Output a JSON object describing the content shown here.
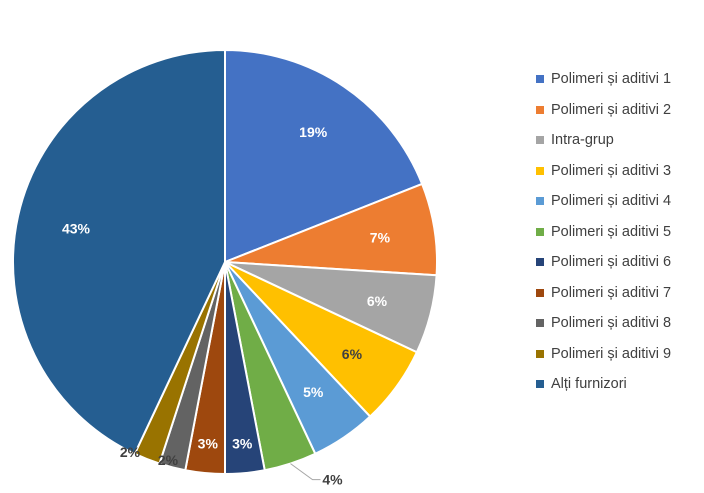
{
  "chart_data": {
    "type": "pie",
    "title": "",
    "legend_position": "right",
    "start_angle_deg": 0,
    "direction": "clockwise",
    "slices": [
      {
        "name": "Polimeri și aditivi 1",
        "value": 19,
        "label": "19%",
        "color": "#4472C4",
        "label_placement": "inside",
        "label_color": "#FFFFFF"
      },
      {
        "name": "Polimeri și aditivi 2",
        "value": 7,
        "label": "7%",
        "color": "#ED7D31",
        "label_placement": "inside",
        "label_color": "#FFFFFF"
      },
      {
        "name": "Intra-grup",
        "value": 6,
        "label": "6%",
        "color": "#A5A5A5",
        "label_placement": "inside",
        "label_color": "#FFFFFF"
      },
      {
        "name": "Polimeri și aditivi 3",
        "value": 6,
        "label": "6%",
        "color": "#FFC000",
        "label_placement": "inside",
        "label_color": "#404040"
      },
      {
        "name": "Polimeri și aditivi 4",
        "value": 5,
        "label": "5%",
        "color": "#5B9BD5",
        "label_placement": "inside",
        "label_color": "#FFFFFF"
      },
      {
        "name": "Polimeri și aditivi 5",
        "value": 4,
        "label": "4%",
        "color": "#70AD47",
        "label_placement": "outside-leader",
        "label_color": "#404040"
      },
      {
        "name": "Polimeri și aditivi 6",
        "value": 3,
        "label": "3%",
        "color": "#264478",
        "label_placement": "inside",
        "label_color": "#FFFFFF"
      },
      {
        "name": "Polimeri și aditivi 7",
        "value": 3,
        "label": "3%",
        "color": "#9E480E",
        "label_placement": "inside",
        "label_color": "#FFFFFF"
      },
      {
        "name": "Polimeri și aditivi 8",
        "value": 2,
        "label": "2%",
        "color": "#636363",
        "label_placement": "outside",
        "label_color": "#404040"
      },
      {
        "name": "Polimeri și aditivi 9",
        "value": 2,
        "label": "2%",
        "color": "#997300",
        "label_placement": "outside",
        "label_color": "#404040"
      },
      {
        "name": "Alți furnizori",
        "value": 43,
        "label": "43%",
        "color": "#255E91",
        "label_placement": "inside",
        "label_color": "#FFFFFF"
      }
    ]
  }
}
